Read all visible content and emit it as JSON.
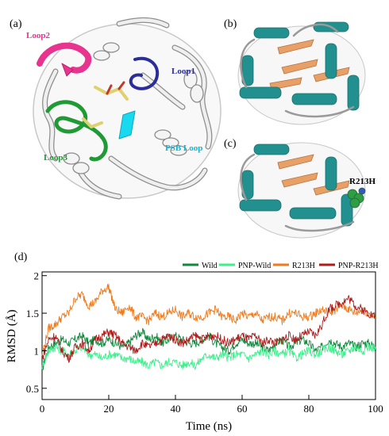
{
  "panels": {
    "a": {
      "label": "(a)",
      "loops": [
        {
          "text": "Loop2",
          "color": "#e8338f"
        },
        {
          "text": "Loop1",
          "color": "#2b2d9a"
        },
        {
          "text": "Loop3",
          "color": "#1f9a35"
        },
        {
          "text": "PSB Loop",
          "color": "#13b6cf"
        }
      ]
    },
    "b": {
      "label": "(b)"
    },
    "c": {
      "label": "(c)",
      "mutation": "R213H"
    },
    "d": {
      "label": "(d)"
    }
  },
  "colors": {
    "helix": "#22908f",
    "sheet": "#e8a066",
    "coil": "#d8d8d8",
    "loop1": "#2b2d9a",
    "loop2": "#e8338f",
    "loop3": "#1f9a35",
    "psb": "#18d9ef",
    "ligand": "#e0d070",
    "mutation_sphere": "#2e9d45"
  },
  "chart_data": {
    "type": "line",
    "xlabel": "Time (ns)",
    "ylabel": "RMSD (Å)",
    "xlim": [
      0,
      100
    ],
    "ylim": [
      0.35,
      2.05
    ],
    "xticks": [
      0,
      20,
      40,
      60,
      80,
      100
    ],
    "yticks": [
      0.5,
      1,
      1.5,
      2
    ],
    "ytick_labels": [
      "0.5",
      "1",
      "1.5",
      "2"
    ],
    "legend_position": "top-right",
    "x": [
      0,
      2,
      4,
      6,
      8,
      10,
      12,
      14,
      16,
      18,
      20,
      22,
      24,
      26,
      28,
      30,
      32,
      34,
      36,
      38,
      40,
      42,
      44,
      46,
      48,
      50,
      52,
      54,
      56,
      58,
      60,
      62,
      64,
      66,
      68,
      70,
      72,
      74,
      76,
      78,
      80,
      82,
      84,
      86,
      88,
      90,
      92,
      94,
      96,
      98,
      100
    ],
    "series": [
      {
        "name": "Wild",
        "color": "#0f8a3c",
        "values": [
          0.75,
          1.05,
          1.1,
          1.15,
          1.1,
          1.15,
          1.2,
          1.1,
          1.15,
          1.1,
          1.15,
          1.1,
          1.05,
          1.1,
          1.2,
          1.25,
          1.15,
          1.2,
          1.1,
          1.15,
          1.2,
          1.15,
          1.1,
          1.1,
          1.15,
          1.2,
          1.1,
          1.05,
          1.0,
          1.1,
          1.15,
          1.1,
          1.1,
          1.05,
          1.0,
          1.1,
          1.15,
          1.05,
          1.1,
          1.15,
          1.1,
          1.0,
          1.05,
          1.15,
          1.1,
          1.05,
          1.1,
          1.05,
          1.1,
          1.1,
          1.05
        ]
      },
      {
        "name": "PNP-Wild",
        "color": "#3df08c",
        "values": [
          0.8,
          1.0,
          1.05,
          1.0,
          0.95,
          1.0,
          1.05,
          0.95,
          0.95,
          0.9,
          0.95,
          0.95,
          0.9,
          0.9,
          0.85,
          0.85,
          0.8,
          0.85,
          0.8,
          0.85,
          0.85,
          0.8,
          0.85,
          0.8,
          0.9,
          0.95,
          0.9,
          0.95,
          0.9,
          0.95,
          0.95,
          0.9,
          0.95,
          1.0,
          0.95,
          1.0,
          0.95,
          1.0,
          0.9,
          0.95,
          1.0,
          0.95,
          1.0,
          1.05,
          1.0,
          0.95,
          1.0,
          1.05,
          1.0,
          1.05,
          1.05
        ]
      },
      {
        "name": "R213H",
        "color": "#f07a1c",
        "values": [
          0.95,
          1.3,
          1.35,
          1.45,
          1.5,
          1.7,
          1.75,
          1.6,
          1.65,
          1.8,
          1.85,
          1.55,
          1.5,
          1.6,
          1.45,
          1.45,
          1.4,
          1.5,
          1.45,
          1.5,
          1.55,
          1.45,
          1.5,
          1.45,
          1.45,
          1.5,
          1.55,
          1.45,
          1.45,
          1.4,
          1.5,
          1.45,
          1.5,
          1.4,
          1.45,
          1.45,
          1.4,
          1.5,
          1.5,
          1.45,
          1.45,
          1.5,
          1.55,
          1.5,
          1.55,
          1.6,
          1.55,
          1.5,
          1.55,
          1.5,
          1.45
        ]
      },
      {
        "name": "PNP-R213H",
        "color": "#b01a1a",
        "values": [
          0.9,
          1.15,
          1.2,
          1.0,
          0.9,
          1.05,
          1.1,
          1.0,
          1.15,
          1.2,
          1.25,
          1.2,
          1.1,
          1.05,
          1.0,
          1.1,
          1.05,
          1.1,
          1.15,
          1.2,
          1.15,
          1.1,
          1.15,
          1.2,
          1.15,
          1.2,
          1.2,
          1.15,
          1.1,
          1.15,
          1.2,
          1.15,
          1.2,
          1.1,
          1.15,
          1.1,
          1.15,
          1.2,
          1.15,
          1.2,
          1.25,
          1.2,
          1.35,
          1.55,
          1.6,
          1.65,
          1.7,
          1.6,
          1.55,
          1.5,
          1.45
        ]
      }
    ]
  }
}
